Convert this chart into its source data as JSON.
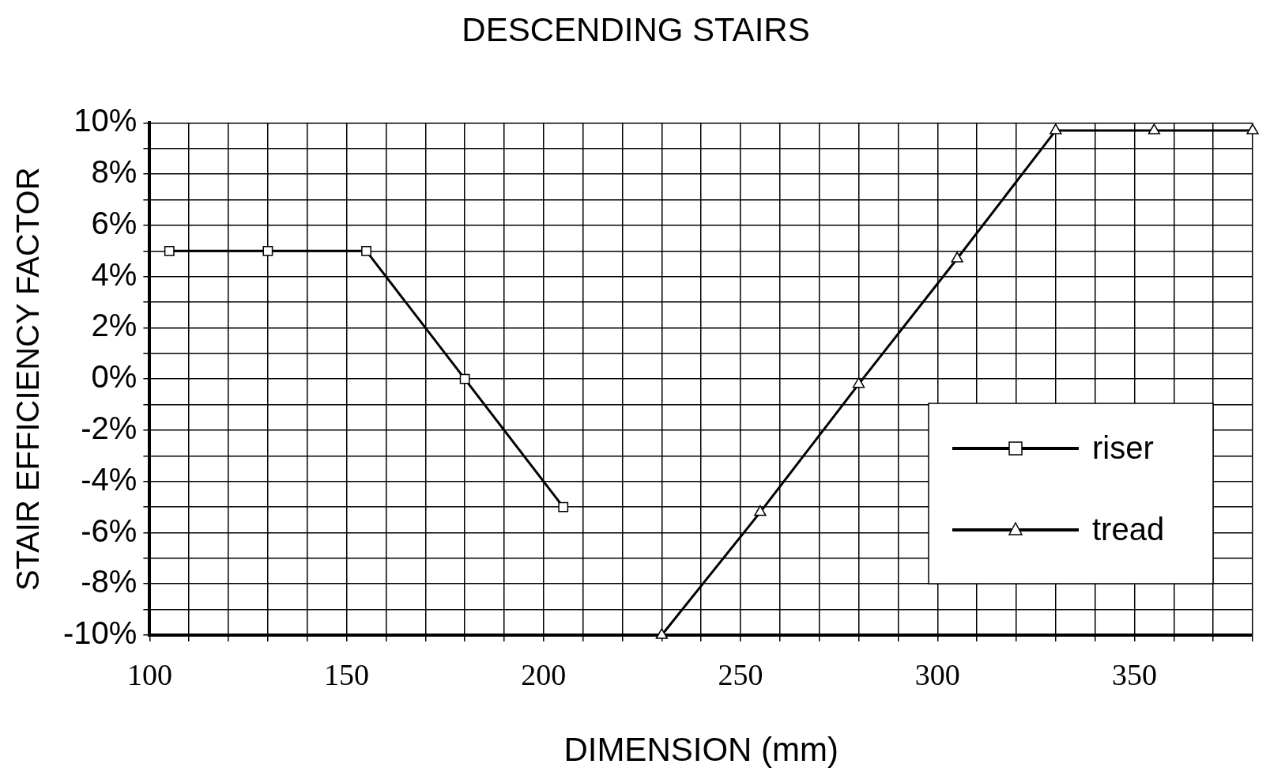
{
  "chart_data": {
    "type": "line",
    "title": "DESCENDING STAIRS",
    "xlabel": "DIMENSION (mm)",
    "ylabel": "STAIR EFFICIENCY FACTOR",
    "xlim": [
      100,
      380
    ],
    "xticks": [
      100,
      {
        "value": 110,
        "label": null
      },
      {
        "value": 120,
        "label": null
      },
      {
        "value": 130,
        "label": null
      },
      {
        "value": 140,
        "label": null
      },
      150,
      {
        "value": 160,
        "label": null
      },
      {
        "value": 170,
        "label": null
      },
      {
        "value": 180,
        "label": null
      },
      {
        "value": 190,
        "label": null
      },
      200,
      {
        "value": 210,
        "label": null
      },
      {
        "value": 220,
        "label": null
      },
      {
        "value": 230,
        "label": null
      },
      {
        "value": 240,
        "label": null
      },
      250,
      {
        "value": 260,
        "label": null
      },
      {
        "value": 270,
        "label": null
      },
      {
        "value": 280,
        "label": null
      },
      {
        "value": 290,
        "label": null
      },
      300,
      {
        "value": 310,
        "label": null
      },
      {
        "value": 320,
        "label": null
      },
      {
        "value": 330,
        "label": null
      },
      {
        "value": 340,
        "label": null
      },
      350,
      {
        "value": 360,
        "label": null
      },
      {
        "value": 370,
        "label": null
      },
      {
        "value": 380,
        "label": null
      }
    ],
    "ylim": [
      -10,
      10
    ],
    "yticks": [
      {
        "value": -10,
        "label": "-10%"
      },
      {
        "value": -9,
        "label": null
      },
      {
        "value": -8,
        "label": "-8%"
      },
      {
        "value": -7,
        "label": null
      },
      {
        "value": -6,
        "label": "-6%"
      },
      {
        "value": -5,
        "label": null
      },
      {
        "value": -4,
        "label": "-4%"
      },
      {
        "value": -3,
        "label": null
      },
      {
        "value": -2,
        "label": "-2%"
      },
      {
        "value": -1,
        "label": null
      },
      {
        "value": 0,
        "label": "0%"
      },
      {
        "value": 1,
        "label": null
      },
      {
        "value": 2,
        "label": "2%"
      },
      {
        "value": 3,
        "label": null
      },
      {
        "value": 4,
        "label": "4%"
      },
      {
        "value": 5,
        "label": null
      },
      {
        "value": 6,
        "label": "6%"
      },
      {
        "value": 7,
        "label": null
      },
      {
        "value": 8,
        "label": "8%"
      },
      {
        "value": 9,
        "label": null
      },
      {
        "value": 10,
        "label": "10%"
      }
    ],
    "grid": true,
    "legend": "bottom right",
    "line_style": "solid",
    "series": [
      {
        "name": "riser",
        "color": "#000000",
        "marker": "square",
        "x": [
          105,
          130,
          155,
          180,
          205
        ],
        "values": [
          5,
          5,
          5,
          0,
          -5
        ]
      },
      {
        "name": "tread",
        "color": "#000000",
        "marker": "triangle",
        "x": [
          230,
          255,
          280,
          305,
          330,
          355,
          380
        ],
        "values": [
          -10,
          -5.2,
          -0.2,
          4.7,
          9.7,
          9.7,
          9.7
        ]
      }
    ]
  }
}
